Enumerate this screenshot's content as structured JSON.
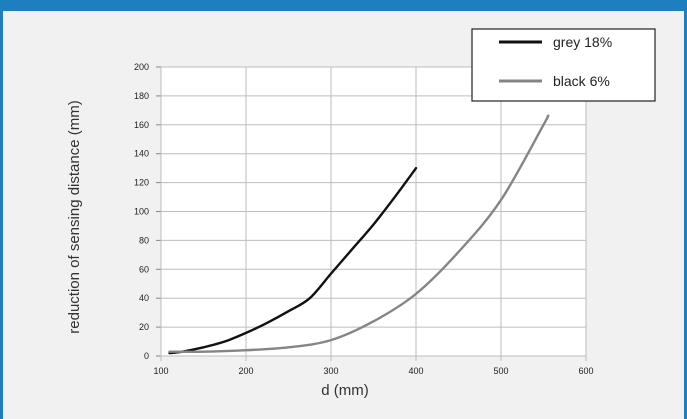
{
  "colors": {
    "frame": "#1e7fbf",
    "background": "#f1f1f1",
    "grid": "#bdbdbd",
    "series_grey": "#111111",
    "series_black": "#858585"
  },
  "chart_data": {
    "type": "line",
    "xlabel": "d (mm)",
    "ylabel": "reduction of sensing distance (mm)",
    "xlim": [
      100,
      600
    ],
    "ylim": [
      0,
      200
    ],
    "x_ticks": [
      "100",
      "200",
      "300",
      "400",
      "500",
      "600"
    ],
    "y_ticks": [
      "0",
      "20",
      "40",
      "60",
      "80",
      "100",
      "120",
      "140",
      "160",
      "180",
      "200"
    ],
    "grid": true,
    "legend_position": "top-right",
    "series": [
      {
        "name": "grey 18%",
        "color": "#111111",
        "x": [
          110,
          125,
          150,
          175,
          200,
          225,
          250,
          275,
          300,
          325,
          350,
          375,
          400
        ],
        "y": [
          2,
          3,
          6,
          10,
          16,
          23,
          31,
          40,
          57,
          74,
          91,
          110,
          130
        ]
      },
      {
        "name": "black 6%",
        "color": "#858585",
        "x": [
          110,
          150,
          200,
          250,
          300,
          350,
          400,
          450,
          500,
          550,
          555
        ],
        "y": [
          3,
          3,
          4,
          6,
          11,
          24,
          43,
          72,
          108,
          160,
          166
        ]
      }
    ]
  }
}
